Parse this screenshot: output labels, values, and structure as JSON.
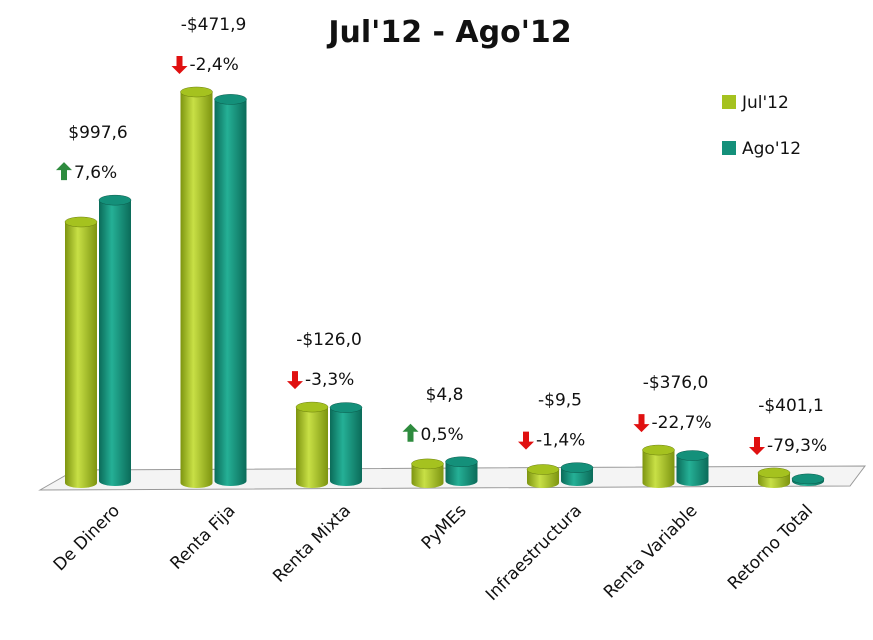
{
  "chart_data": {
    "type": "bar3d",
    "title": "Jul'12 - Ago'12",
    "categories": [
      "De Dinero",
      "Renta Fija",
      "Renta Mixta",
      "PyMEs",
      "Infraestructura",
      "Renta Variable",
      "Retorno Total"
    ],
    "series": [
      {
        "name": "Jul'12",
        "color": "#a5c21f",
        "values": [
          13126,
          19663,
          3818,
          960,
          679,
          1656,
          506
        ]
      },
      {
        "name": "Ago'12",
        "color": "#14907a",
        "values": [
          14124,
          19191,
          3692,
          965,
          670,
          1280,
          105
        ]
      }
    ],
    "annotations": [
      {
        "amount": "$997,6",
        "change": "7,6%"
      },
      {
        "amount": "-$471,9",
        "change": "-2,4%"
      },
      {
        "amount": "-$126,0",
        "change": "-3,3%"
      },
      {
        "amount": "$4,8",
        "change": "0,5%"
      },
      {
        "amount": "-$9,5",
        "change": "-1,4%"
      },
      {
        "amount": "-$376,0",
        "change": "-22,7%"
      },
      {
        "amount": "-$401,1",
        "change": "-79,3%"
      }
    ],
    "legend_position": "upper right"
  }
}
